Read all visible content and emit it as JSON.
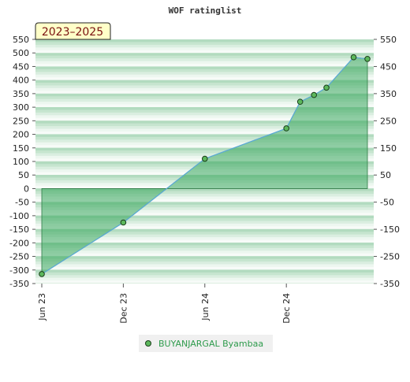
{
  "chart_data": {
    "type": "area",
    "title": "WOF ratinglist",
    "badge": "2023–2025",
    "xlabel": "",
    "ylabel": "",
    "x_ticks": [
      "Jun 23",
      "Dec 23",
      "Jun 24",
      "Dec 24"
    ],
    "y_ticks": [
      "550",
      "500",
      "450",
      "400",
      "350",
      "300",
      "250",
      "200",
      "150",
      "100",
      "50",
      "0",
      "-50",
      "-100",
      "-150",
      "-200",
      "-250",
      "-300",
      "-350"
    ],
    "y_right_ticks": [
      "550",
      "450",
      "350",
      "250",
      "150",
      "50",
      "-50",
      "-150",
      "-250",
      "-350"
    ],
    "ylim": [
      -350,
      550
    ],
    "xlim": [
      "2023-06-01",
      "2025-06-01"
    ],
    "grid": "horizontal-bands",
    "legend_position": "bottom-center",
    "series": [
      {
        "name": "BUYANJARGAL Byambaa",
        "color": "#5aa9d6",
        "fill": "#3aa85e",
        "marker": "#5cb85c",
        "points": [
          {
            "x": "2023-06-01",
            "y": -315
          },
          {
            "x": "2023-12-01",
            "y": -125
          },
          {
            "x": "2024-06-01",
            "y": 110
          },
          {
            "x": "2024-12-01",
            "y": 222
          },
          {
            "x": "2025-01-01",
            "y": 320
          },
          {
            "x": "2025-02-01",
            "y": 345
          },
          {
            "x": "2025-03-01",
            "y": 372
          },
          {
            "x": "2025-05-01",
            "y": 484
          },
          {
            "x": "2025-06-01",
            "y": 478
          }
        ]
      }
    ]
  }
}
